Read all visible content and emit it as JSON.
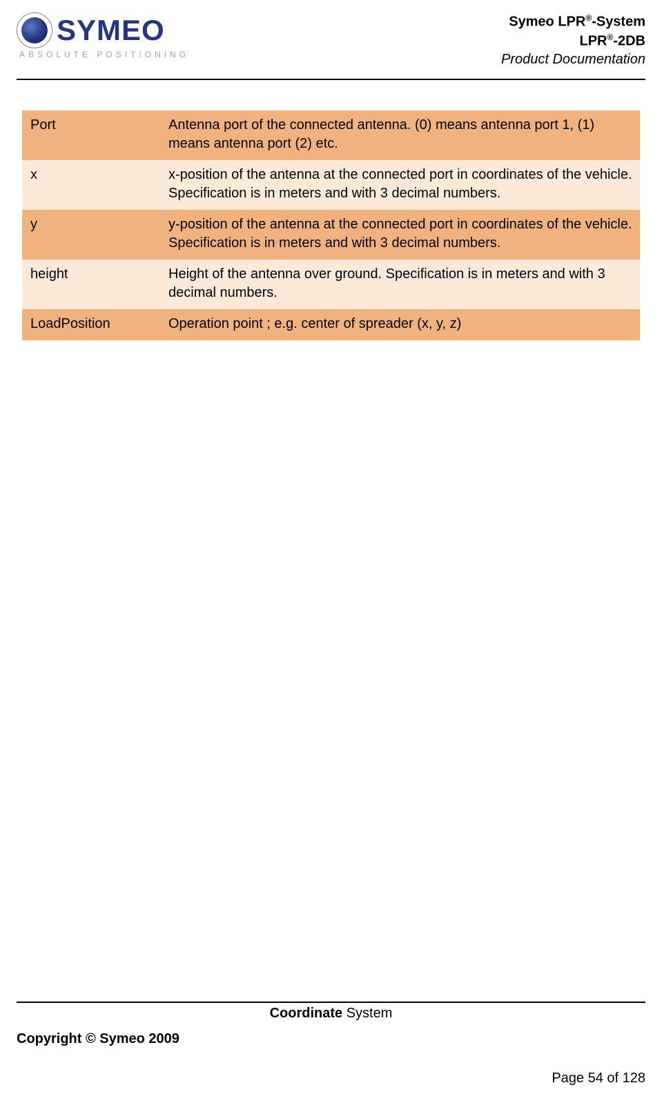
{
  "logo": {
    "word_dark": "S",
    "word_rest": "YMEO",
    "tagline": "ABSOLUTE POSITIONING",
    "colors": {
      "brand_dark": "#25367f",
      "brand_light": "#5a78c8",
      "tagline_gray": "#9aa1a8"
    }
  },
  "header": {
    "line1_pre": "Symeo LPR",
    "line1_sup": "®",
    "line1_post": "-System",
    "line2_pre": "LPR",
    "line2_sup": "®",
    "line2_post": "-2DB",
    "line3": "Product Documentation"
  },
  "table": {
    "colors": {
      "dark": "#f2b27f",
      "light": "#fce9d8"
    },
    "rows": [
      {
        "shade": "dark",
        "key": "Port",
        "desc": "Antenna port of the connected antenna. (0) means antenna port 1, (1) means antenna port (2) etc."
      },
      {
        "shade": "light",
        "key": "x",
        "desc": "x-position of the antenna at the connected port in coordinates of the vehicle. Specification is in meters and with 3 decimal numbers."
      },
      {
        "shade": "dark",
        "key": "y",
        "desc": "y-position of the antenna at the connected port in coordinates of the vehicle. Specification is in meters and with 3 decimal numbers."
      },
      {
        "shade": "light",
        "key": "height",
        "desc": "Height of the antenna over ground. Specification is in meters and with 3 decimal numbers."
      },
      {
        "shade": "dark",
        "key": "LoadPosition",
        "desc": "Operation point ; e.g. center of spreader (x, y, z)"
      }
    ]
  },
  "footer": {
    "section_bold": "Coordinate",
    "section_rest": " System",
    "copyright": "Copyright © Symeo 2009",
    "page": "Page 54 of 128"
  }
}
